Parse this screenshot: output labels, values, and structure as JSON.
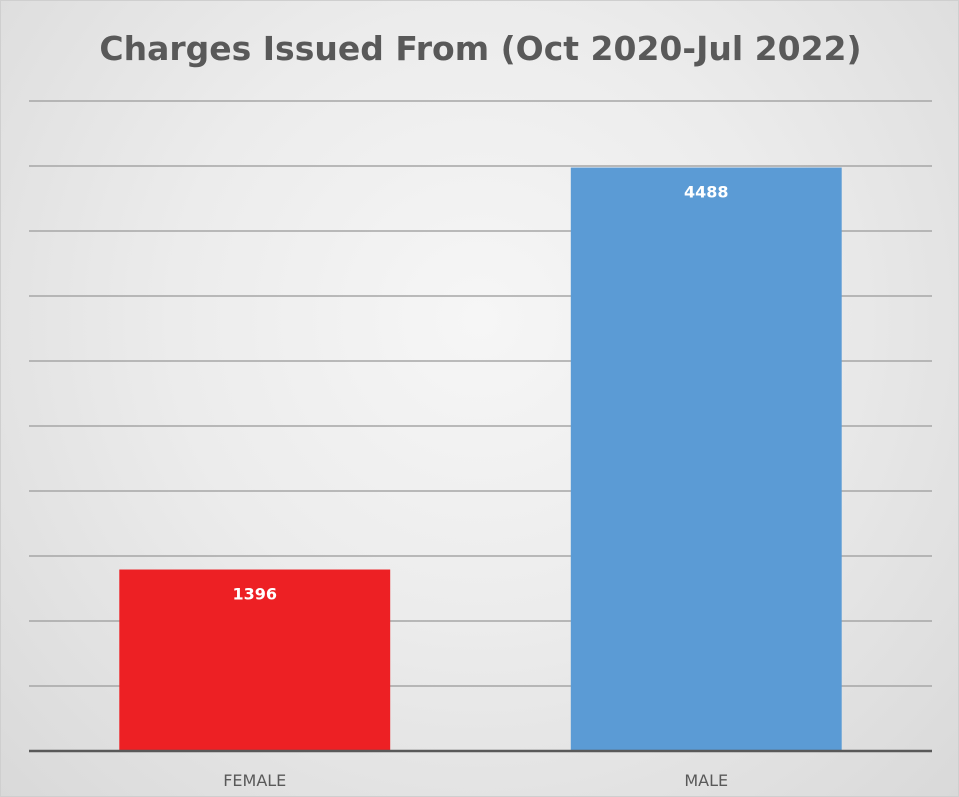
{
  "chart_data": {
    "type": "bar",
    "title": "Charges Issued From (Oct 2020-Jul 2022)",
    "xlabel": "",
    "ylabel": "",
    "categories": [
      "FEMALE",
      "MALE"
    ],
    "values": [
      1396,
      4488
    ],
    "bar_colors": [
      "#ed2024",
      "#5b9bd5"
    ],
    "data_labels": [
      "1396",
      "4488"
    ],
    "ylim": [
      0,
      5000
    ],
    "grid": true,
    "gridline_step": 500,
    "legend": "none"
  }
}
